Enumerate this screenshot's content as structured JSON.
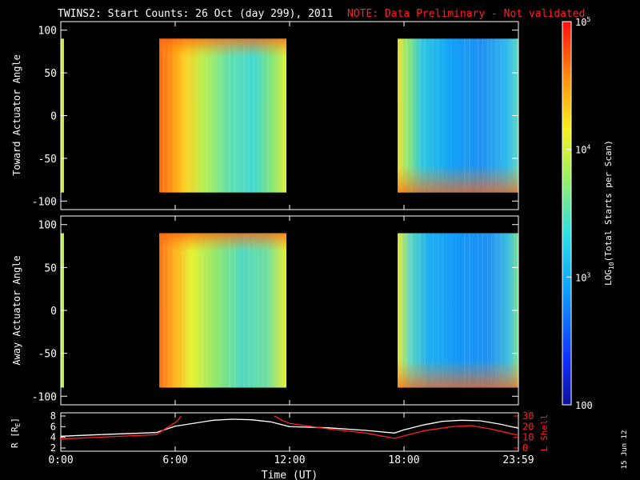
{
  "chart_data": [
    {
      "type": "heatmap",
      "title": "TWINS2: Start Counts: 26 Oct (day 299), 2011",
      "note": "NOTE: Data Preliminary - Not validated",
      "ylabel": "Toward Actuator Angle",
      "ylim": [
        -110,
        110
      ],
      "yticks": [
        "100",
        "50",
        "0",
        "-50",
        "-100"
      ],
      "y_range": [
        -90,
        90
      ],
      "data_segments": [
        {
          "t_start": "0:00",
          "t_end": "0:10"
        },
        {
          "t_start": "5:10",
          "t_end": "11:50"
        },
        {
          "t_start": "17:40",
          "t_end": "24:00"
        }
      ]
    },
    {
      "type": "heatmap",
      "ylabel": "Away Actuator Angle",
      "ylim": [
        -110,
        110
      ],
      "yticks": [
        "100",
        "50",
        "0",
        "-50",
        "-100"
      ],
      "y_range": [
        -90,
        90
      ],
      "data_segments": [
        {
          "t_start": "0:00",
          "t_end": "0:10"
        },
        {
          "t_start": "5:10",
          "t_end": "11:50"
        },
        {
          "t_start": "17:40",
          "t_end": "24:00"
        }
      ]
    },
    {
      "type": "line",
      "ylabel_left": "R [R",
      "ylabel_left_sub": "E",
      "ylabel_left_close": "]",
      "ylabel_right": "L Shell",
      "yticks_left": [
        "8",
        "6",
        "4",
        "2"
      ],
      "yticks_right": [
        "30",
        "20",
        "10",
        "0"
      ],
      "ylim_left": [
        2,
        8
      ],
      "ylim_right": [
        0,
        30
      ],
      "xlabel": "Time (UT)",
      "xticks": [
        "0:00",
        "6:00",
        "12:00",
        "18:00",
        "23:59"
      ],
      "xlim_hours": [
        0,
        24
      ],
      "series": [
        {
          "axis": "left",
          "x_hours": [
            0,
            2,
            5,
            6,
            8,
            9,
            10,
            11,
            12,
            14,
            16,
            17.5,
            18,
            19,
            20,
            21,
            22,
            23,
            24
          ],
          "values": [
            4.2,
            4.5,
            4.9,
            6.1,
            7.2,
            7.4,
            7.3,
            6.9,
            6.0,
            5.8,
            5.3,
            4.8,
            5.4,
            6.3,
            7.0,
            7.2,
            7.1,
            6.5,
            5.7
          ]
        },
        {
          "axis": "right",
          "x_hours": [
            0,
            5.0,
            6.1,
            6.3
          ],
          "values": [
            8.5,
            12.5,
            25,
            30
          ]
        },
        {
          "axis": "right",
          "x_hours": [
            11.2,
            11.6,
            12.0,
            14,
            16,
            17.5,
            19,
            20.5,
            21.5,
            22.5,
            24
          ],
          "values": [
            30,
            26,
            23,
            18,
            14,
            9,
            16,
            20,
            21,
            18,
            12
          ]
        }
      ]
    }
  ],
  "colorbar": {
    "label_log": "LOG",
    "label_sub": "10",
    "label_rest": "(Total Starts per Scan)",
    "ticks": [
      {
        "base": "10",
        "exp": "5"
      },
      {
        "base": "10",
        "exp": "4"
      },
      {
        "base": "10",
        "exp": "3"
      },
      {
        "base": "100",
        "exp": ""
      }
    ],
    "range": [
      100,
      100000
    ]
  },
  "date_stamp": "15 Jun 12",
  "colors": {
    "background": "#000000",
    "axes": "#ffffff",
    "note": "#ff2020",
    "lshell": "#ff2020",
    "radius": "#ffffff"
  }
}
